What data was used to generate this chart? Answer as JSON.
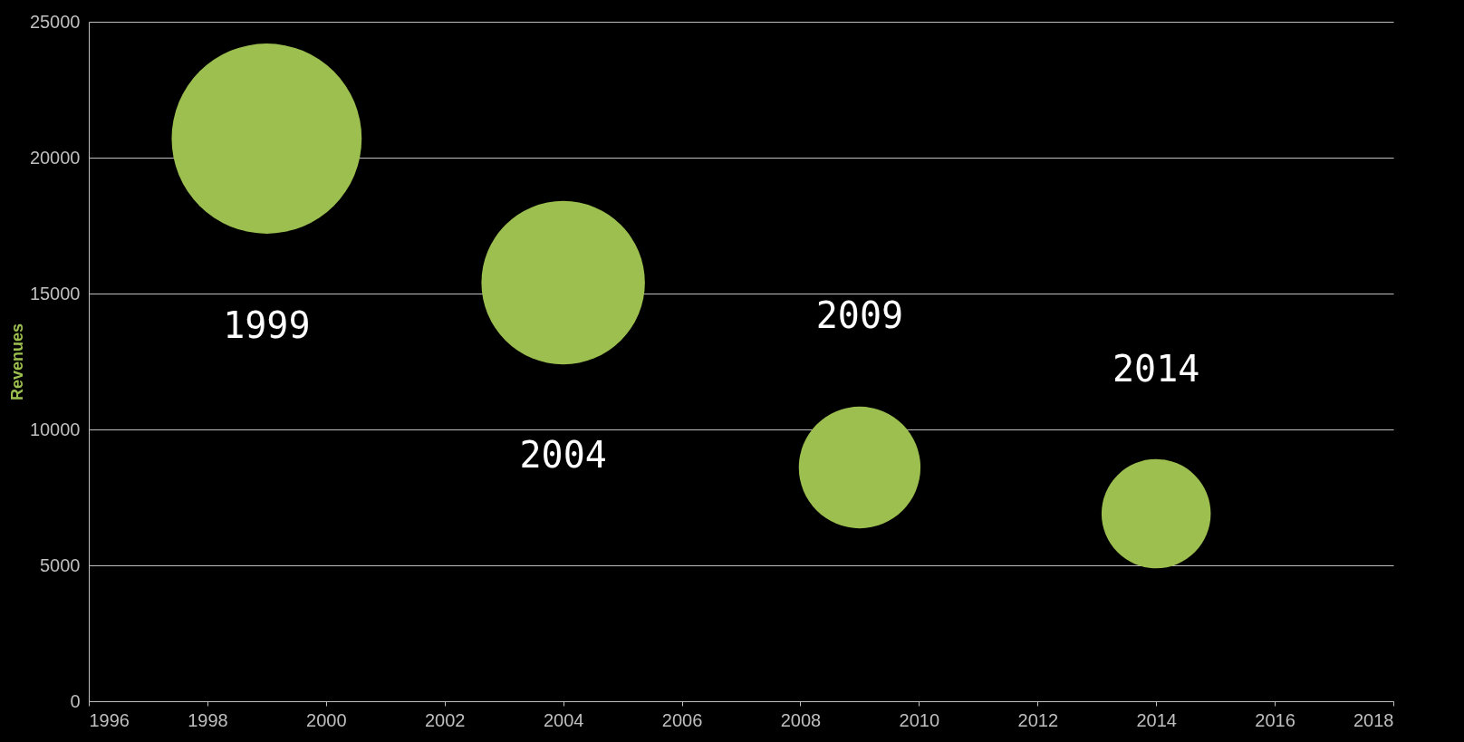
{
  "chart_data": {
    "type": "bubble",
    "ylabel": "Revenues",
    "x": [
      1999,
      2004,
      2009,
      2014
    ],
    "values": [
      20700,
      15400,
      8600,
      6900
    ],
    "sizes": [
      1,
      0.74,
      0.41,
      0.33
    ],
    "color": "#9cbf4f",
    "xlim": [
      1996,
      2018
    ],
    "xticks": [
      1996,
      1998,
      2000,
      2002,
      2004,
      2006,
      2008,
      2010,
      2012,
      2014,
      2016,
      2018
    ],
    "ylim": [
      0,
      25000
    ],
    "yticks": [
      0,
      5000,
      10000,
      15000,
      20000,
      25000
    ],
    "grid": "y",
    "annotations": [
      "1999",
      "2004",
      "2009",
      "2014"
    ]
  }
}
